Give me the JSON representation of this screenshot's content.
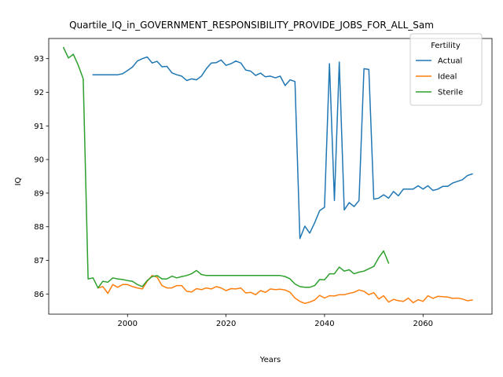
{
  "chart_data": {
    "type": "line",
    "title": "Quartile_IQ_in_GOVERNMENT_RESPONSIBILITY_PROVIDE_JOBS_FOR_ALL_Sam",
    "xlabel": "Years",
    "ylabel": "IQ",
    "xlim": [
      1984,
      2074
    ],
    "ylim": [
      85.4,
      93.6
    ],
    "xticks": [
      2000,
      2020,
      2040,
      2060
    ],
    "yticks": [
      86,
      87,
      88,
      89,
      90,
      91,
      92,
      93
    ],
    "grid": false,
    "legend": {
      "title": "Fertility",
      "position": "top-right"
    },
    "series": [
      {
        "name": "Actual",
        "color": "#1f77b4",
        "points": [
          [
            1993,
            92.52
          ],
          [
            1998,
            92.52
          ],
          [
            1999,
            92.55
          ],
          [
            2000,
            92.65
          ],
          [
            2001,
            92.75
          ],
          [
            2002,
            92.93
          ],
          [
            2003,
            93.0
          ],
          [
            2004,
            93.05
          ],
          [
            2005,
            92.87
          ],
          [
            2006,
            92.92
          ],
          [
            2007,
            92.76
          ],
          [
            2008,
            92.77
          ],
          [
            2009,
            92.58
          ],
          [
            2010,
            92.52
          ],
          [
            2011,
            92.48
          ],
          [
            2012,
            92.35
          ],
          [
            2013,
            92.4
          ],
          [
            2014,
            92.37
          ],
          [
            2015,
            92.48
          ],
          [
            2016,
            92.7
          ],
          [
            2017,
            92.87
          ],
          [
            2018,
            92.88
          ],
          [
            2019,
            92.96
          ],
          [
            2020,
            92.8
          ],
          [
            2021,
            92.85
          ],
          [
            2022,
            92.93
          ],
          [
            2023,
            92.87
          ],
          [
            2024,
            92.66
          ],
          [
            2025,
            92.63
          ],
          [
            2026,
            92.5
          ],
          [
            2027,
            92.57
          ],
          [
            2028,
            92.46
          ],
          [
            2029,
            92.48
          ],
          [
            2030,
            92.43
          ],
          [
            2031,
            92.48
          ],
          [
            2032,
            92.2
          ],
          [
            2033,
            92.37
          ],
          [
            2034,
            92.32
          ],
          [
            2035,
            87.65
          ],
          [
            2036,
            88.02
          ],
          [
            2037,
            87.81
          ],
          [
            2038,
            88.12
          ],
          [
            2039,
            88.48
          ],
          [
            2040,
            88.58
          ],
          [
            2041,
            92.85
          ],
          [
            2042,
            88.78
          ],
          [
            2043,
            92.9
          ],
          [
            2044,
            88.5
          ],
          [
            2045,
            88.72
          ],
          [
            2046,
            88.6
          ],
          [
            2047,
            88.78
          ],
          [
            2048,
            92.7
          ],
          [
            2049,
            92.68
          ],
          [
            2050,
            88.82
          ],
          [
            2051,
            88.85
          ],
          [
            2052,
            88.95
          ],
          [
            2053,
            88.85
          ],
          [
            2054,
            89.05
          ],
          [
            2055,
            88.92
          ],
          [
            2056,
            89.12
          ],
          [
            2057,
            89.12
          ],
          [
            2058,
            89.12
          ],
          [
            2059,
            89.22
          ],
          [
            2060,
            89.12
          ],
          [
            2061,
            89.22
          ],
          [
            2062,
            89.08
          ],
          [
            2063,
            89.12
          ],
          [
            2064,
            89.2
          ],
          [
            2065,
            89.2
          ],
          [
            2066,
            89.3
          ],
          [
            2067,
            89.35
          ],
          [
            2068,
            89.4
          ],
          [
            2069,
            89.52
          ],
          [
            2070,
            89.57
          ]
        ]
      },
      {
        "name": "Ideal",
        "color": "#ff7f0e",
        "points": [
          [
            1994,
            86.18
          ],
          [
            1995,
            86.22
          ],
          [
            1996,
            86.02
          ],
          [
            1997,
            86.28
          ],
          [
            1998,
            86.2
          ],
          [
            1999,
            86.28
          ],
          [
            2000,
            86.28
          ],
          [
            2001,
            86.22
          ],
          [
            2002,
            86.18
          ],
          [
            2003,
            86.15
          ],
          [
            2004,
            86.38
          ],
          [
            2005,
            86.55
          ],
          [
            2006,
            86.5
          ],
          [
            2007,
            86.25
          ],
          [
            2008,
            86.18
          ],
          [
            2009,
            86.18
          ],
          [
            2010,
            86.25
          ],
          [
            2011,
            86.25
          ],
          [
            2012,
            86.08
          ],
          [
            2013,
            86.06
          ],
          [
            2014,
            86.16
          ],
          [
            2015,
            86.13
          ],
          [
            2016,
            86.18
          ],
          [
            2017,
            86.15
          ],
          [
            2018,
            86.22
          ],
          [
            2019,
            86.18
          ],
          [
            2020,
            86.1
          ],
          [
            2021,
            86.16
          ],
          [
            2022,
            86.15
          ],
          [
            2023,
            86.18
          ],
          [
            2024,
            86.03
          ],
          [
            2025,
            86.05
          ],
          [
            2026,
            85.98
          ],
          [
            2027,
            86.1
          ],
          [
            2028,
            86.05
          ],
          [
            2029,
            86.15
          ],
          [
            2030,
            86.13
          ],
          [
            2031,
            86.14
          ],
          [
            2032,
            86.12
          ],
          [
            2033,
            86.05
          ],
          [
            2034,
            85.88
          ],
          [
            2035,
            85.78
          ],
          [
            2036,
            85.72
          ],
          [
            2037,
            85.76
          ],
          [
            2038,
            85.82
          ],
          [
            2039,
            85.96
          ],
          [
            2040,
            85.88
          ],
          [
            2041,
            85.95
          ],
          [
            2042,
            85.94
          ],
          [
            2043,
            85.98
          ],
          [
            2044,
            85.98
          ],
          [
            2045,
            86.02
          ],
          [
            2046,
            86.05
          ],
          [
            2047,
            86.12
          ],
          [
            2048,
            86.08
          ],
          [
            2049,
            85.98
          ],
          [
            2050,
            86.04
          ],
          [
            2051,
            85.85
          ],
          [
            2052,
            85.95
          ],
          [
            2053,
            85.76
          ],
          [
            2054,
            85.84
          ],
          [
            2055,
            85.8
          ],
          [
            2056,
            85.78
          ],
          [
            2057,
            85.88
          ],
          [
            2058,
            85.74
          ],
          [
            2059,
            85.83
          ],
          [
            2060,
            85.78
          ],
          [
            2061,
            85.95
          ],
          [
            2062,
            85.87
          ],
          [
            2063,
            85.93
          ],
          [
            2064,
            85.92
          ],
          [
            2065,
            85.91
          ],
          [
            2066,
            85.87
          ],
          [
            2067,
            85.88
          ],
          [
            2068,
            85.85
          ],
          [
            2069,
            85.8
          ],
          [
            2070,
            85.82
          ]
        ]
      },
      {
        "name": "Sterile",
        "color": "#2ca02c",
        "points": [
          [
            1987,
            93.33
          ],
          [
            1988,
            93.02
          ],
          [
            1989,
            93.13
          ],
          [
            1990,
            92.8
          ],
          [
            1991,
            92.4
          ],
          [
            1992,
            86.45
          ],
          [
            1993,
            86.48
          ],
          [
            1994,
            86.18
          ],
          [
            1995,
            86.38
          ],
          [
            1996,
            86.35
          ],
          [
            1997,
            86.48
          ],
          [
            1998,
            86.45
          ],
          [
            1999,
            86.43
          ],
          [
            2000,
            86.4
          ],
          [
            2001,
            86.38
          ],
          [
            2002,
            86.28
          ],
          [
            2003,
            86.22
          ],
          [
            2004,
            86.4
          ],
          [
            2005,
            86.52
          ],
          [
            2006,
            86.55
          ],
          [
            2007,
            86.45
          ],
          [
            2008,
            86.45
          ],
          [
            2009,
            86.53
          ],
          [
            2010,
            86.48
          ],
          [
            2011,
            86.52
          ],
          [
            2012,
            86.55
          ],
          [
            2013,
            86.6
          ],
          [
            2014,
            86.7
          ],
          [
            2015,
            86.58
          ],
          [
            2016,
            86.55
          ],
          [
            2030,
            86.55
          ],
          [
            2031,
            86.55
          ],
          [
            2032,
            86.52
          ],
          [
            2033,
            86.45
          ],
          [
            2034,
            86.3
          ],
          [
            2035,
            86.22
          ],
          [
            2036,
            86.2
          ],
          [
            2037,
            86.2
          ],
          [
            2038,
            86.25
          ],
          [
            2039,
            86.43
          ],
          [
            2040,
            86.42
          ],
          [
            2041,
            86.6
          ],
          [
            2042,
            86.6
          ],
          [
            2043,
            86.8
          ],
          [
            2044,
            86.68
          ],
          [
            2045,
            86.72
          ],
          [
            2046,
            86.6
          ],
          [
            2047,
            86.65
          ],
          [
            2048,
            86.68
          ],
          [
            2049,
            86.75
          ],
          [
            2050,
            86.82
          ],
          [
            2051,
            87.08
          ],
          [
            2052,
            87.28
          ],
          [
            2053,
            86.92
          ]
        ]
      }
    ]
  }
}
